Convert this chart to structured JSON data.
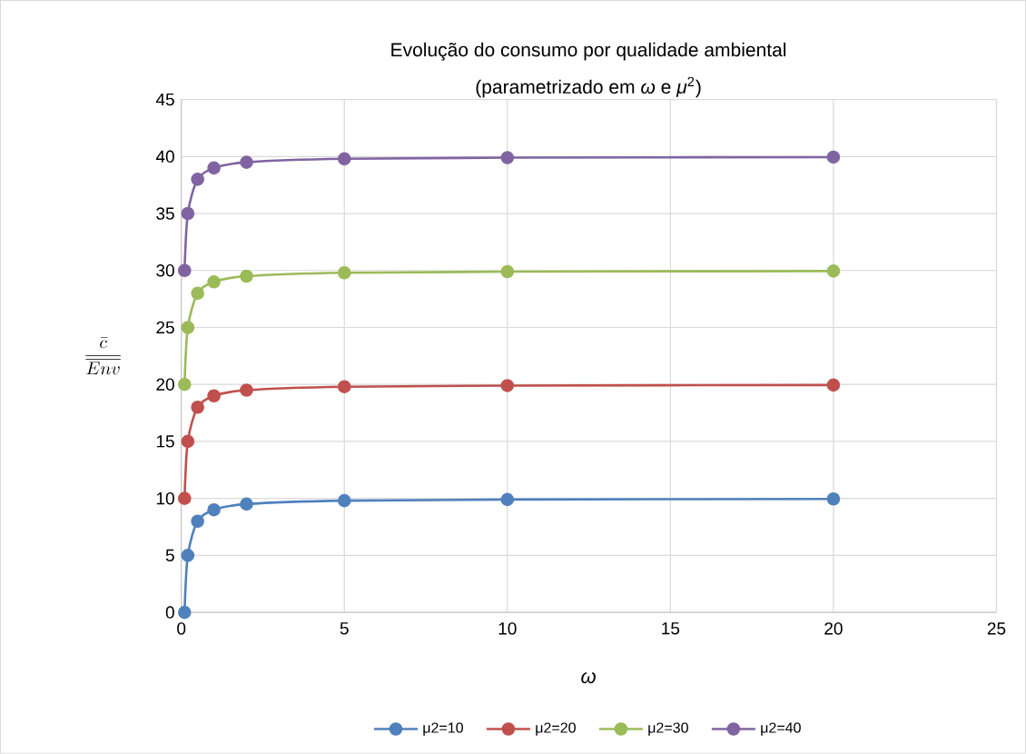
{
  "chart_data": {
    "type": "line",
    "title": "Evolução do consumo por qualidade ambiental",
    "subtitle": "(parametrizado em *ω* e *μ*$^{2}$)",
    "xlabel": "ω",
    "ylabel": "\\frac{\\bar{c}}{\\overline{Env}}",
    "x": [
      0.1,
      0.2,
      0.5,
      1,
      2,
      5,
      10,
      20
    ],
    "series": [
      {
        "name": "μ2=10",
        "color": "#4f81bd",
        "values": [
          0,
          5,
          8,
          9,
          9.5,
          9.8,
          9.9,
          9.95
        ]
      },
      {
        "name": "μ2=20",
        "color": "#c0504d",
        "values": [
          10,
          15,
          18,
          19,
          19.5,
          19.8,
          19.9,
          19.95
        ]
      },
      {
        "name": "μ2=30",
        "color": "#9bbb59",
        "values": [
          20,
          25,
          28,
          29,
          29.5,
          29.8,
          29.9,
          29.95
        ]
      },
      {
        "name": "μ2=40",
        "color": "#8064a2",
        "values": [
          30,
          35,
          38,
          39,
          39.5,
          39.8,
          39.9,
          39.95
        ]
      }
    ],
    "xlim": [
      0,
      25
    ],
    "ylim": [
      0,
      45
    ],
    "xticks": [
      0,
      5,
      10,
      15,
      20,
      25
    ],
    "yticks": [
      0,
      5,
      10,
      15,
      20,
      25,
      30,
      35,
      40,
      45
    ],
    "grid": true,
    "legend": "bottom",
    "marker": "circle",
    "line_style": "solid"
  }
}
